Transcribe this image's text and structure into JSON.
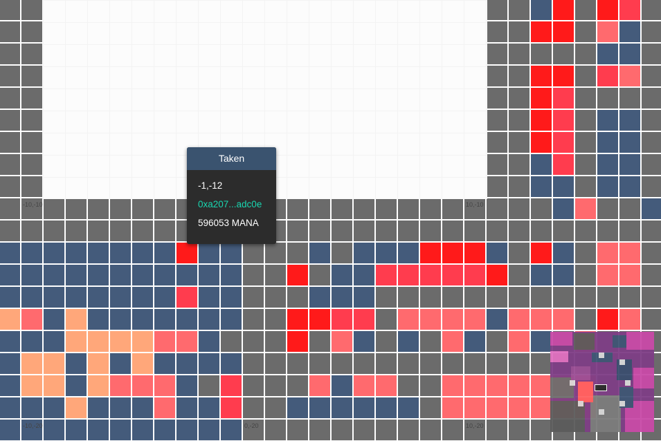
{
  "app": {
    "name": "parcel-map"
  },
  "colors": {
    "unowned_parcel": "#6b6b6b",
    "taken_parcel": "#445b7b",
    "district_red": "#ff1a1a",
    "contribution_red": "#ff3c4e",
    "pink_parcel": "#ff6a6e",
    "orange_parcel": "#ffa77a",
    "empty_area": "#fcfcfc",
    "tooltip_header": "#3a536f",
    "tooltip_body": "#2c2c2c",
    "owner_text": "#19d6b0"
  },
  "coordinate_labels": [
    {
      "text": "-10,-10"
    },
    {
      "text": "10,-10"
    },
    {
      "text": "-10,-20"
    },
    {
      "text": "0,-20"
    },
    {
      "text": "10,-20"
    }
  ],
  "tooltip": {
    "header": "Taken",
    "coordinates": "-1,-12",
    "owner": "0xa207...adc0e",
    "price": "596053 MANA"
  },
  "minimap": {
    "icon": "minimap-icon"
  }
}
